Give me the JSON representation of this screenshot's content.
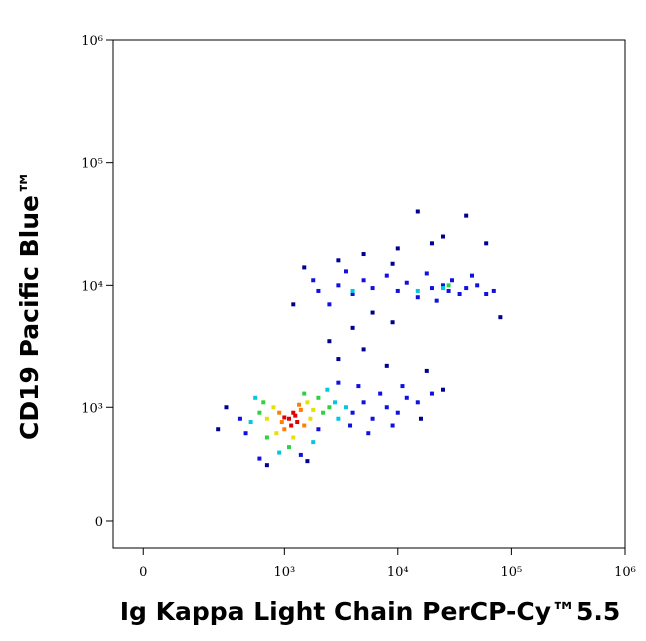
{
  "chart_data": {
    "type": "scatter",
    "x_label": "Ig Kappa Light Chain PerCP-Cy™5.5",
    "y_label": "CD19 Pacific Blue™",
    "xscale": "arcsinh",
    "yscale": "arcsinh",
    "xlim": [
      -75,
      1000000
    ],
    "ylim": [
      -127,
      1000000
    ],
    "xticks": [
      0,
      {
        "value": 1000,
        "label": "10³"
      },
      {
        "value": 10000,
        "label": "10⁴"
      },
      {
        "value": 100000,
        "label": "10⁵"
      },
      {
        "value": 1000000,
        "label": "10⁶"
      }
    ],
    "yticks": [
      0,
      {
        "value": 1000,
        "label": "10³"
      },
      {
        "value": 10000,
        "label": "10⁴"
      },
      {
        "value": 100000,
        "label": "10⁵"
      },
      {
        "value": 1000000,
        "label": "10⁶"
      }
    ],
    "palette": [
      "#e00000",
      "#ff8000",
      "#e8e000",
      "#30d040",
      "#00c8e0",
      "#1010e0",
      "#000090"
    ],
    "x": [
      1100,
      1200,
      1300,
      1150,
      1250,
      1000,
      900,
      1400,
      1500,
      1000,
      1350,
      950,
      800,
      1600,
      1700,
      850,
      1200,
      1800,
      700,
      600,
      2000,
      2200,
      700,
      1100,
      1500,
      2500,
      650,
      500,
      2800,
      3000,
      1800,
      900,
      3500,
      550,
      2400,
      400,
      4000,
      5000,
      6000,
      7000,
      8000,
      10000,
      12000,
      15000,
      3000,
      4500,
      600,
      1400,
      2000,
      9000,
      20000,
      450,
      5500,
      11000,
      3800,
      250,
      300,
      16000,
      25000,
      18000,
      3000,
      5000,
      8000,
      2500,
      4000,
      700,
      1600,
      9000,
      2000,
      3000,
      4000,
      2500,
      5000,
      6000,
      10000,
      12000,
      15000,
      20000,
      25000,
      28000,
      30000,
      35000,
      40000,
      50000,
      60000,
      70000,
      8000,
      18000,
      22000,
      45000,
      1800,
      3500,
      25000,
      28000,
      4000,
      15000,
      1200,
      1500,
      3000,
      5000,
      10000,
      20000,
      15000,
      25000,
      60000,
      80000,
      9000,
      40000,
      6000
    ],
    "y": [
      800,
      900,
      750,
      700,
      850,
      820,
      900,
      950,
      700,
      650,
      1050,
      750,
      1000,
      1100,
      800,
      600,
      550,
      950,
      800,
      900,
      1200,
      900,
      550,
      450,
      1300,
      1000,
      1100,
      750,
      1100,
      800,
      500,
      400,
      1000,
      1200,
      1400,
      800,
      900,
      1100,
      800,
      1300,
      1000,
      900,
      1200,
      1100,
      1600,
      1500,
      350,
      380,
      650,
      700,
      1300,
      600,
      600,
      1500,
      700,
      650,
      1000,
      800,
      1400,
      2000,
      2500,
      3000,
      2200,
      3500,
      4500,
      300,
      330,
      5000,
      9000,
      10000,
      8500,
      7000,
      11000,
      9500,
      9000,
      10500,
      8000,
      9500,
      10000,
      9000,
      11000,
      8500,
      9500,
      10000,
      8500,
      9000,
      12000,
      12500,
      7500,
      12000,
      11000,
      13000,
      9500,
      10000,
      9000,
      9000,
      7000,
      14000,
      16000,
      18000,
      20000,
      22000,
      40000,
      25000,
      22000,
      5500,
      15000,
      37000,
      6000
    ],
    "colors": [
      0,
      0,
      0,
      0,
      0,
      0,
      1,
      1,
      1,
      1,
      1,
      1,
      2,
      2,
      2,
      2,
      2,
      2,
      2,
      3,
      3,
      3,
      3,
      3,
      3,
      3,
      3,
      4,
      4,
      4,
      4,
      4,
      4,
      4,
      4,
      5,
      5,
      5,
      5,
      5,
      5,
      5,
      5,
      5,
      5,
      5,
      5,
      5,
      5,
      5,
      5,
      5,
      5,
      5,
      5,
      6,
      6,
      6,
      6,
      6,
      6,
      6,
      6,
      6,
      6,
      6,
      6,
      6,
      5,
      5,
      5,
      5,
      5,
      5,
      5,
      5,
      5,
      5,
      5,
      5,
      5,
      5,
      5,
      5,
      5,
      5,
      5,
      5,
      5,
      5,
      5,
      5,
      4,
      3,
      4,
      4,
      6,
      6,
      6,
      6,
      6,
      6,
      6,
      6,
      6,
      6,
      6,
      6,
      6
    ]
  }
}
